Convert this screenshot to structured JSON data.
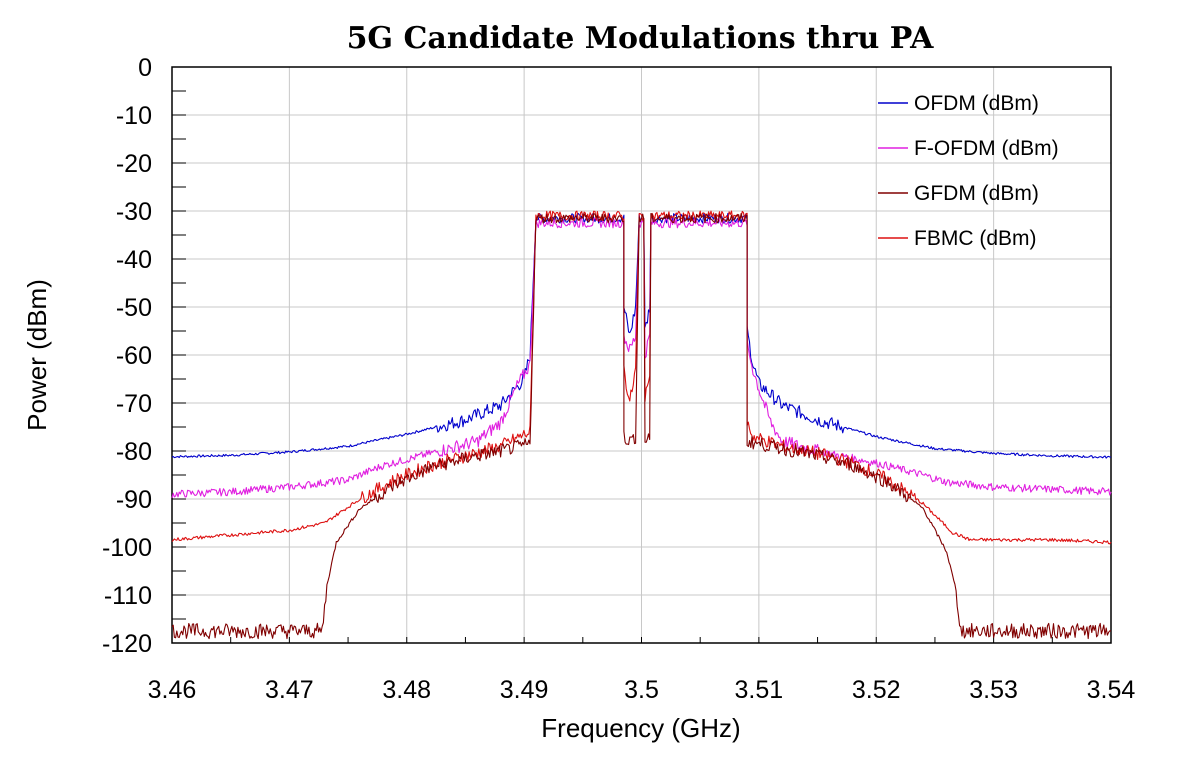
{
  "chart_data": {
    "type": "line",
    "title": "5G Candidate Modulations thru PA",
    "xlabel": "Frequency (GHz)",
    "ylabel": "Power (dBm)",
    "xlim": [
      3.46,
      3.54
    ],
    "ylim": [
      -120,
      0
    ],
    "xticks": [
      "3.46",
      "3.47",
      "3.48",
      "3.49",
      "3.5",
      "3.51",
      "3.52",
      "3.53",
      "3.54"
    ],
    "yticks": [
      "0",
      "-10",
      "-20",
      "-30",
      "-40",
      "-50",
      "-60",
      "-70",
      "-80",
      "-90",
      "-100",
      "-110",
      "-120"
    ],
    "grid": true,
    "legend_position": "top-right",
    "series": [
      {
        "name": "OFDM (dBm)",
        "color": "#0000cc",
        "points": [
          [
            3.46,
            -81.2
          ],
          [
            3.465,
            -80.9
          ],
          [
            3.47,
            -80.2
          ],
          [
            3.475,
            -79
          ],
          [
            3.48,
            -76.5
          ],
          [
            3.485,
            -73.5
          ],
          [
            3.488,
            -70.5
          ],
          [
            3.49,
            -65
          ],
          [
            3.4905,
            -60
          ],
          [
            3.491,
            -31.5
          ],
          [
            3.4985,
            -31.5
          ],
          [
            3.4985,
            -50
          ],
          [
            3.499,
            -56
          ],
          [
            3.4995,
            -50
          ],
          [
            3.4998,
            -31.5
          ],
          [
            3.5002,
            -31.5
          ],
          [
            3.5003,
            -55
          ],
          [
            3.5007,
            -50
          ],
          [
            3.5008,
            -31.5
          ],
          [
            3.509,
            -31.5
          ],
          [
            3.509,
            -55
          ],
          [
            3.5095,
            -62
          ],
          [
            3.51,
            -66
          ],
          [
            3.512,
            -70.5
          ],
          [
            3.515,
            -73.5
          ],
          [
            3.52,
            -77
          ],
          [
            3.525,
            -79.5
          ],
          [
            3.53,
            -80.5
          ],
          [
            3.535,
            -81
          ],
          [
            3.54,
            -81.3
          ]
        ]
      },
      {
        "name": "F-OFDM (dBm)",
        "color": "#e020e0",
        "points": [
          [
            3.46,
            -89
          ],
          [
            3.465,
            -88.5
          ],
          [
            3.47,
            -87.5
          ],
          [
            3.475,
            -86
          ],
          [
            3.478,
            -83
          ],
          [
            3.482,
            -80.5
          ],
          [
            3.486,
            -78
          ],
          [
            3.488,
            -74
          ],
          [
            3.4895,
            -66
          ],
          [
            3.4905,
            -62
          ],
          [
            3.491,
            -32.5
          ],
          [
            3.4985,
            -32.5
          ],
          [
            3.4985,
            -56
          ],
          [
            3.499,
            -59
          ],
          [
            3.4995,
            -56
          ],
          [
            3.4998,
            -32.5
          ],
          [
            3.5002,
            -32.5
          ],
          [
            3.5003,
            -60
          ],
          [
            3.5007,
            -56
          ],
          [
            3.5008,
            -32.5
          ],
          [
            3.509,
            -32.5
          ],
          [
            3.509,
            -58
          ],
          [
            3.5095,
            -63
          ],
          [
            3.51,
            -67
          ],
          [
            3.511,
            -74
          ],
          [
            3.512,
            -78
          ],
          [
            3.515,
            -80
          ],
          [
            3.52,
            -82.5
          ],
          [
            3.524,
            -85
          ],
          [
            3.526,
            -86.5
          ],
          [
            3.53,
            -87.5
          ],
          [
            3.535,
            -88
          ],
          [
            3.54,
            -88.5
          ]
        ]
      },
      {
        "name": "GFDM (dBm)",
        "color": "#800000",
        "points": [
          [
            3.46,
            -117.5
          ],
          [
            3.465,
            -117.5
          ],
          [
            3.47,
            -117.5
          ],
          [
            3.4728,
            -117.5
          ],
          [
            3.4732,
            -108
          ],
          [
            3.474,
            -99
          ],
          [
            3.476,
            -92
          ],
          [
            3.479,
            -87
          ],
          [
            3.482,
            -83.5
          ],
          [
            3.485,
            -81.5
          ],
          [
            3.488,
            -80
          ],
          [
            3.4905,
            -78.5
          ],
          [
            3.491,
            -31.5
          ],
          [
            3.4985,
            -31.5
          ],
          [
            3.4985,
            -77
          ],
          [
            3.499,
            -78
          ],
          [
            3.4995,
            -77
          ],
          [
            3.4998,
            -31.5
          ],
          [
            3.5002,
            -31.5
          ],
          [
            3.5003,
            -78
          ],
          [
            3.5007,
            -77
          ],
          [
            3.5008,
            -31.5
          ],
          [
            3.509,
            -31.5
          ],
          [
            3.509,
            -78
          ],
          [
            3.512,
            -79.5
          ],
          [
            3.515,
            -81
          ],
          [
            3.518,
            -83
          ],
          [
            3.521,
            -86.5
          ],
          [
            3.524,
            -92
          ],
          [
            3.526,
            -101
          ],
          [
            3.5268,
            -109
          ],
          [
            3.5272,
            -117.5
          ],
          [
            3.53,
            -117.5
          ],
          [
            3.535,
            -117.5
          ],
          [
            3.54,
            -117.5
          ]
        ]
      },
      {
        "name": "FBMC (dBm)",
        "color": "#dd1010",
        "points": [
          [
            3.46,
            -98.5
          ],
          [
            3.465,
            -97.5
          ],
          [
            3.47,
            -96.5
          ],
          [
            3.473,
            -95
          ],
          [
            3.476,
            -90
          ],
          [
            3.479,
            -86
          ],
          [
            3.482,
            -83
          ],
          [
            3.485,
            -81
          ],
          [
            3.488,
            -79
          ],
          [
            3.4905,
            -76
          ],
          [
            3.491,
            -31
          ],
          [
            3.4985,
            -31
          ],
          [
            3.4985,
            -63
          ],
          [
            3.499,
            -70
          ],
          [
            3.4995,
            -63
          ],
          [
            3.4998,
            -31
          ],
          [
            3.5002,
            -31
          ],
          [
            3.5003,
            -70
          ],
          [
            3.5007,
            -63
          ],
          [
            3.5008,
            -31
          ],
          [
            3.509,
            -31
          ],
          [
            3.509,
            -74
          ],
          [
            3.5095,
            -77
          ],
          [
            3.512,
            -79
          ],
          [
            3.515,
            -80.5
          ],
          [
            3.518,
            -82.5
          ],
          [
            3.521,
            -86
          ],
          [
            3.524,
            -91
          ],
          [
            3.5265,
            -97
          ],
          [
            3.528,
            -98.5
          ],
          [
            3.535,
            -98.5
          ],
          [
            3.54,
            -99
          ]
        ]
      }
    ]
  }
}
